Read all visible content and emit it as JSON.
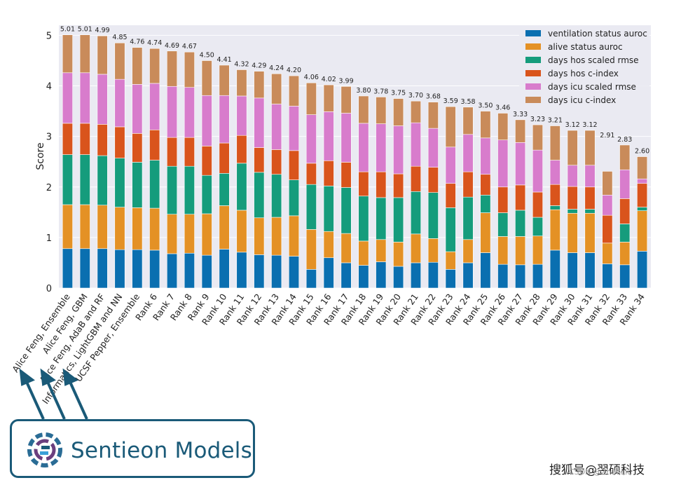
{
  "chart_data": {
    "type": "bar",
    "stacked": true,
    "ylabel": "Score",
    "ylim": [
      0,
      5.2
    ],
    "yticks": [
      0,
      1,
      2,
      3,
      4,
      5
    ],
    "grid": true,
    "legend_position": "top-right",
    "categories": [
      "Alice Feng, Ensemble",
      "Alice Feng, GBM",
      "Alice Feng, AdaB and RF",
      "Informatics, LightGBM and NN",
      "UCSF Pepper, Ensemble",
      "Rank 6",
      "Rank 7",
      "Rank 8",
      "Rank 9",
      "Rank 10",
      "Rank 11",
      "Rank 12",
      "Rank 13",
      "Rank 14",
      "Rank 15",
      "Rank 16",
      "Rank 17",
      "Rank 18",
      "Rank 19",
      "Rank 20",
      "Rank 21",
      "Rank 22",
      "Rank 23",
      "Rank 24",
      "Rank 25",
      "Rank 26",
      "Rank 27",
      "Rank 28",
      "Rank 29",
      "Rank 30",
      "Rank 31",
      "Rank 32",
      "Rank 33",
      "Rank 34"
    ],
    "totals": [
      "5.01",
      "5.01",
      "4.99",
      "4.85",
      "4.76",
      "4.74",
      "4.69",
      "4.67",
      "4.50",
      "4.41",
      "4.32",
      "4.29",
      "4.24",
      "4.20",
      "4.06",
      "4.02",
      "3.99",
      "3.80",
      "3.78",
      "3.75",
      "3.70",
      "3.68",
      "3.59",
      "3.58",
      "3.50",
      "3.46",
      "3.33",
      "3.23",
      "3.21",
      "3.12",
      "3.12",
      "2.91",
      "2.83",
      "2.60"
    ],
    "series": [
      {
        "name": "ventilation status auroc",
        "color": "#0a6fb0",
        "values": [
          0.78,
          0.78,
          0.78,
          0.76,
          0.76,
          0.75,
          0.68,
          0.69,
          0.65,
          0.77,
          0.71,
          0.66,
          0.65,
          0.63,
          0.37,
          0.6,
          0.5,
          0.45,
          0.52,
          0.43,
          0.5,
          0.51,
          0.37,
          0.5,
          0.7,
          0.47,
          0.46,
          0.47,
          0.75,
          0.7,
          0.7,
          0.48,
          0.46,
          0.73
        ]
      },
      {
        "name": "alive status auroc",
        "color": "#e49125",
        "values": [
          0.87,
          0.87,
          0.86,
          0.84,
          0.83,
          0.83,
          0.78,
          0.77,
          0.82,
          0.86,
          0.83,
          0.73,
          0.75,
          0.8,
          0.79,
          0.52,
          0.58,
          0.48,
          0.44,
          0.48,
          0.57,
          0.47,
          0.35,
          0.46,
          0.79,
          0.55,
          0.56,
          0.56,
          0.8,
          0.78,
          0.78,
          0.41,
          0.45,
          0.8
        ]
      },
      {
        "name": "days hos scaled rmse",
        "color": "#159c7c",
        "values": [
          0.99,
          0.99,
          0.98,
          0.97,
          0.9,
          0.95,
          0.95,
          0.95,
          0.76,
          0.64,
          0.93,
          0.9,
          0.85,
          0.71,
          0.89,
          0.9,
          0.91,
          0.89,
          0.83,
          0.88,
          0.84,
          0.91,
          0.87,
          0.84,
          0.35,
          0.47,
          0.52,
          0.37,
          0.08,
          0.08,
          0.08,
          0.0,
          0.36,
          0.07
        ]
      },
      {
        "name": "days hos c-index",
        "color": "#d9541c",
        "values": [
          0.62,
          0.62,
          0.62,
          0.62,
          0.57,
          0.6,
          0.57,
          0.57,
          0.58,
          0.6,
          0.55,
          0.49,
          0.49,
          0.58,
          0.42,
          0.5,
          0.5,
          0.48,
          0.51,
          0.47,
          0.5,
          0.5,
          0.48,
          0.5,
          0.41,
          0.51,
          0.5,
          0.5,
          0.42,
          0.45,
          0.44,
          0.55,
          0.5,
          0.47
        ]
      },
      {
        "name": "days icu scaled rmse",
        "color": "#d87ccc",
        "values": [
          1.0,
          1.0,
          0.99,
          0.94,
          0.97,
          0.92,
          1.01,
          0.99,
          1.0,
          0.94,
          0.78,
          0.98,
          0.9,
          0.88,
          0.96,
          0.97,
          0.97,
          0.96,
          0.95,
          0.95,
          0.86,
          0.77,
          0.72,
          0.74,
          0.72,
          0.93,
          0.84,
          0.83,
          0.48,
          0.42,
          0.43,
          0.4,
          0.57,
          0.09
        ]
      },
      {
        "name": "days icu c-index",
        "color": "#c98b5a",
        "values": [
          0.75,
          0.75,
          0.76,
          0.72,
          0.73,
          0.69,
          0.7,
          0.7,
          0.69,
          0.6,
          0.52,
          0.53,
          0.6,
          0.6,
          0.63,
          0.53,
          0.53,
          0.54,
          0.53,
          0.54,
          0.43,
          0.52,
          0.8,
          0.54,
          0.53,
          0.53,
          0.45,
          0.5,
          0.68,
          0.69,
          0.69,
          0.47,
          0.49,
          0.44
        ]
      }
    ]
  },
  "callout": {
    "label": "Sentieon Models"
  },
  "watermark": {
    "logo_text": "搜狐号@翌硕科技",
    "csdn_text": "CSDN @ZhuoLiu"
  }
}
